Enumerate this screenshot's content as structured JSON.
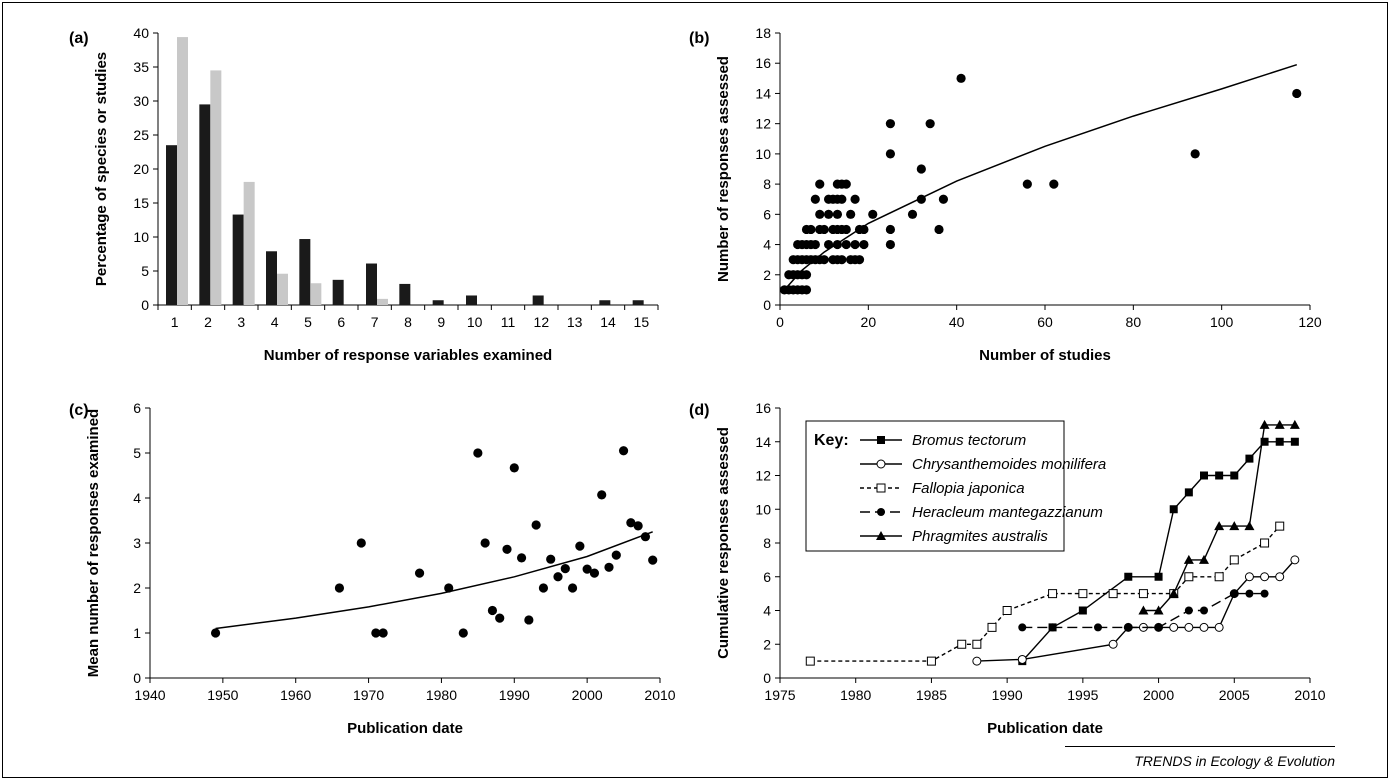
{
  "footer": "TRENDS in Ecology & Evolution",
  "chart_data": [
    {
      "panel": "(a)",
      "type": "bar",
      "xlabel": "Number of response variables examined",
      "ylabel": "Percentage of species or studies",
      "ylim": [
        0,
        40
      ],
      "yticks": [
        0,
        5,
        10,
        15,
        20,
        25,
        30,
        35,
        40
      ],
      "categories": [
        "1",
        "2",
        "3",
        "4",
        "5",
        "6",
        "7",
        "8",
        "9",
        "10",
        "11",
        "12",
        "13",
        "14",
        "15"
      ],
      "series": [
        {
          "color": "#1a1a1a",
          "values": [
            23.5,
            29.5,
            13.3,
            7.9,
            9.7,
            3.7,
            6.1,
            3.1,
            0.7,
            1.4,
            0,
            1.4,
            0,
            0.7,
            0.7
          ]
        },
        {
          "color": "#c8c8c8",
          "values": [
            39.4,
            34.5,
            18.1,
            4.6,
            3.2,
            0,
            0.9,
            0,
            0,
            0,
            0,
            0,
            0,
            0,
            0
          ]
        }
      ]
    },
    {
      "panel": "(b)",
      "type": "scatter",
      "xlabel": "Number of studies",
      "ylabel": "Number of responses  assessed",
      "xlim": [
        0,
        120
      ],
      "ylim": [
        0,
        18
      ],
      "xticks": [
        0,
        20,
        40,
        60,
        80,
        100,
        120
      ],
      "yticks": [
        0,
        2,
        4,
        6,
        8,
        10,
        12,
        14,
        16,
        18
      ],
      "points": [
        [
          1,
          1
        ],
        [
          2,
          1
        ],
        [
          3,
          1
        ],
        [
          4,
          1
        ],
        [
          5,
          1
        ],
        [
          6,
          1
        ],
        [
          2,
          2
        ],
        [
          3,
          2
        ],
        [
          4,
          2
        ],
        [
          5,
          2
        ],
        [
          6,
          2
        ],
        [
          3,
          3
        ],
        [
          4,
          3
        ],
        [
          5,
          3
        ],
        [
          6,
          3
        ],
        [
          7,
          3
        ],
        [
          8,
          3
        ],
        [
          9,
          3
        ],
        [
          10,
          3
        ],
        [
          12,
          3
        ],
        [
          13,
          3
        ],
        [
          14,
          3
        ],
        [
          16,
          3
        ],
        [
          17,
          3
        ],
        [
          18,
          3
        ],
        [
          4,
          4
        ],
        [
          5,
          4
        ],
        [
          6,
          4
        ],
        [
          7,
          4
        ],
        [
          8,
          4
        ],
        [
          11,
          4
        ],
        [
          13,
          4
        ],
        [
          15,
          4
        ],
        [
          17,
          4
        ],
        [
          19,
          4
        ],
        [
          25,
          4
        ],
        [
          6,
          5
        ],
        [
          7,
          5
        ],
        [
          9,
          5
        ],
        [
          10,
          5
        ],
        [
          12,
          5
        ],
        [
          13,
          5
        ],
        [
          14,
          5
        ],
        [
          15,
          5
        ],
        [
          18,
          5
        ],
        [
          19,
          5
        ],
        [
          25,
          5
        ],
        [
          36,
          5
        ],
        [
          9,
          6
        ],
        [
          11,
          6
        ],
        [
          13,
          6
        ],
        [
          16,
          6
        ],
        [
          21,
          6
        ],
        [
          30,
          6
        ],
        [
          8,
          7
        ],
        [
          11,
          7
        ],
        [
          12,
          7
        ],
        [
          13,
          7
        ],
        [
          14,
          7
        ],
        [
          17,
          7
        ],
        [
          32,
          7
        ],
        [
          37,
          7
        ],
        [
          9,
          8
        ],
        [
          13,
          8
        ],
        [
          14,
          8
        ],
        [
          15,
          8
        ],
        [
          56,
          8
        ],
        [
          62,
          8
        ],
        [
          32,
          9
        ],
        [
          25,
          10
        ],
        [
          94,
          10
        ],
        [
          25,
          12
        ],
        [
          34,
          12
        ],
        [
          117,
          14
        ],
        [
          41,
          15
        ]
      ],
      "curve_label": "fitted curve",
      "curve": [
        [
          1,
          1
        ],
        [
          5,
          2.3
        ],
        [
          10,
          3.5
        ],
        [
          20,
          5.4
        ],
        [
          40,
          8.2
        ],
        [
          60,
          10.5
        ],
        [
          80,
          12.5
        ],
        [
          100,
          14.3
        ],
        [
          117,
          15.9
        ]
      ]
    },
    {
      "panel": "(c)",
      "type": "scatter",
      "xlabel": "Publication date",
      "ylabel": "Mean number of responses examined",
      "xlim": [
        1940,
        2010
      ],
      "ylim": [
        0,
        6
      ],
      "xticks": [
        1940,
        1950,
        1960,
        1970,
        1980,
        1990,
        2000,
        2010
      ],
      "yticks": [
        0,
        1,
        2,
        3,
        4,
        5,
        6
      ],
      "points": [
        [
          1949,
          1
        ],
        [
          1966,
          2
        ],
        [
          1969,
          3
        ],
        [
          1971,
          1
        ],
        [
          1972,
          1
        ],
        [
          1977,
          2.33
        ],
        [
          1981,
          2
        ],
        [
          1983,
          1
        ],
        [
          1985,
          5
        ],
        [
          1986,
          3
        ],
        [
          1987,
          1.5
        ],
        [
          1988,
          1.33
        ],
        [
          1989,
          2.86
        ],
        [
          1990,
          4.67
        ],
        [
          1991,
          2.67
        ],
        [
          1992,
          1.29
        ],
        [
          1993,
          3.4
        ],
        [
          1994,
          2
        ],
        [
          1995,
          2.64
        ],
        [
          1996,
          2.25
        ],
        [
          1997,
          2.43
        ],
        [
          1998,
          2
        ],
        [
          1999,
          2.93
        ],
        [
          2000,
          2.42
        ],
        [
          2001,
          2.33
        ],
        [
          2002,
          4.07
        ],
        [
          2003,
          2.46
        ],
        [
          2004,
          2.73
        ],
        [
          2005,
          5.05
        ],
        [
          2006,
          3.45
        ],
        [
          2007,
          3.38
        ],
        [
          2008,
          3.14
        ],
        [
          2009,
          2.62
        ]
      ],
      "curve": [
        [
          1949,
          1.1
        ],
        [
          1960,
          1.33
        ],
        [
          1970,
          1.58
        ],
        [
          1980,
          1.88
        ],
        [
          1990,
          2.25
        ],
        [
          2000,
          2.7
        ],
        [
          2009,
          3.25
        ]
      ]
    },
    {
      "panel": "(d)",
      "type": "line",
      "xlabel": "Publication date",
      "ylabel": "Cumulative responses  assessed",
      "xlim": [
        1975,
        2010
      ],
      "ylim": [
        0,
        16
      ],
      "xticks": [
        1975,
        1980,
        1985,
        1990,
        1995,
        2000,
        2005,
        2010
      ],
      "yticks": [
        0,
        2,
        4,
        6,
        8,
        10,
        12,
        14,
        16
      ],
      "legend_title": "Key:",
      "legend_position": "top-left",
      "series": [
        {
          "name": "Bromus tectorum",
          "marker": "filled-square",
          "dash": "solid",
          "points": [
            [
              1991,
              1
            ],
            [
              1993,
              3
            ],
            [
              1995,
              4
            ],
            [
              1998,
              6
            ],
            [
              2000,
              6
            ],
            [
              2001,
              10
            ],
            [
              2002,
              11
            ],
            [
              2003,
              12
            ],
            [
              2004,
              12
            ],
            [
              2005,
              12
            ],
            [
              2006,
              13
            ],
            [
              2007,
              14
            ],
            [
              2008,
              14
            ],
            [
              2009,
              14
            ]
          ]
        },
        {
          "name": "Chrysanthemoides monilifera",
          "marker": "open-circle",
          "dash": "solid",
          "points": [
            [
              1988,
              1
            ],
            [
              1991,
              1.1
            ],
            [
              1997,
              2
            ],
            [
              1998,
              3
            ],
            [
              1999,
              3
            ],
            [
              2000,
              3
            ],
            [
              2001,
              3
            ],
            [
              2002,
              3
            ],
            [
              2003,
              3
            ],
            [
              2004,
              3
            ],
            [
              2005,
              5
            ],
            [
              2006,
              6
            ],
            [
              2007,
              6
            ],
            [
              2008,
              6
            ],
            [
              2009,
              7
            ]
          ]
        },
        {
          "name": "Fallopia japonica",
          "marker": "open-square",
          "dash": "short-dash",
          "points": [
            [
              1977,
              1
            ],
            [
              1985,
              1
            ],
            [
              1987,
              2
            ],
            [
              1988,
              2
            ],
            [
              1989,
              3
            ],
            [
              1990,
              4
            ],
            [
              1993,
              5
            ],
            [
              1995,
              5
            ],
            [
              1997,
              5
            ],
            [
              1999,
              5
            ],
            [
              2001,
              5
            ],
            [
              2002,
              6
            ],
            [
              2004,
              6
            ],
            [
              2005,
              7
            ],
            [
              2007,
              8
            ],
            [
              2008,
              9
            ]
          ]
        },
        {
          "name": "Heracleum mantegazzianum",
          "marker": "filled-circle",
          "dash": "long-dash",
          "points": [
            [
              1991,
              3
            ],
            [
              1993,
              3
            ],
            [
              1996,
              3
            ],
            [
              1998,
              3
            ],
            [
              2000,
              3
            ],
            [
              2002,
              4
            ],
            [
              2003,
              4
            ],
            [
              2005,
              5
            ],
            [
              2006,
              5
            ],
            [
              2007,
              5
            ]
          ]
        },
        {
          "name": "Phragmites australis",
          "marker": "filled-triangle",
          "dash": "solid",
          "points": [
            [
              1999,
              4
            ],
            [
              2000,
              4
            ],
            [
              2001,
              5
            ],
            [
              2002,
              7
            ],
            [
              2003,
              7
            ],
            [
              2004,
              9
            ],
            [
              2005,
              9
            ],
            [
              2006,
              9
            ],
            [
              2007,
              15
            ],
            [
              2008,
              15
            ],
            [
              2009,
              15
            ]
          ]
        }
      ]
    }
  ]
}
